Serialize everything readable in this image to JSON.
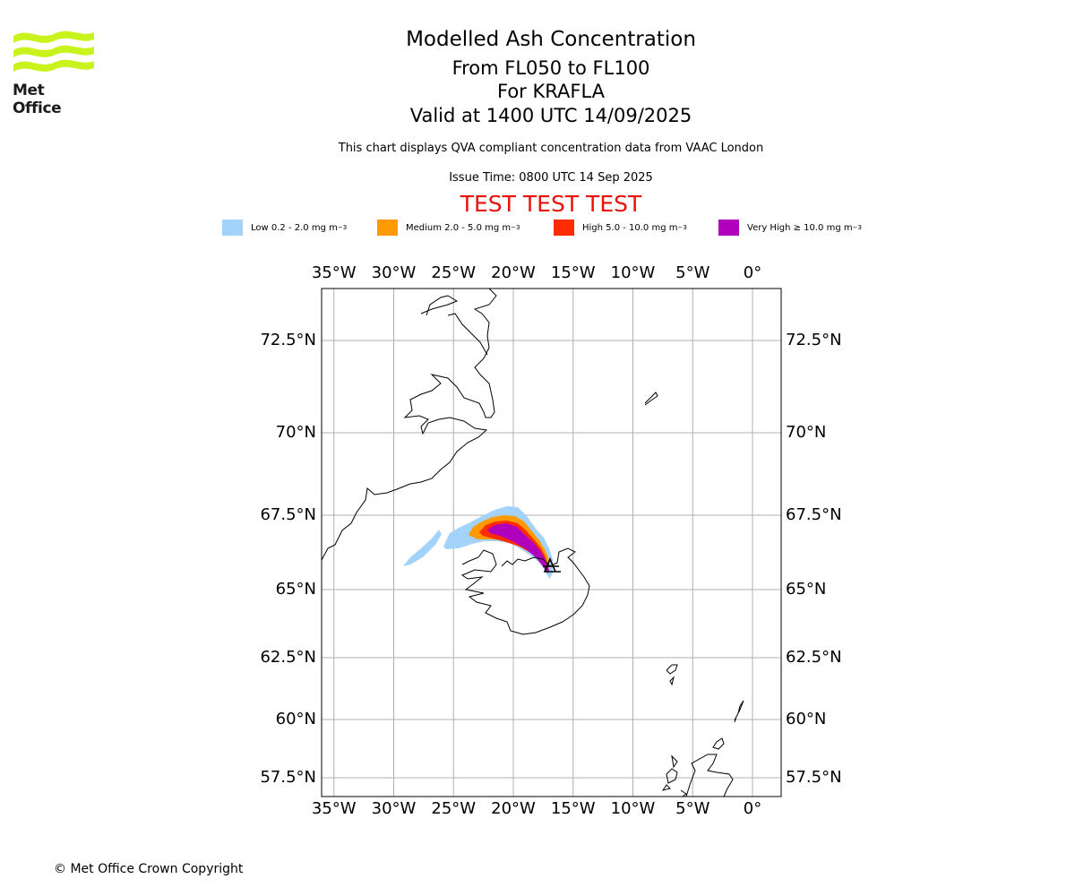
{
  "logo": {
    "text": "Met Office",
    "colors": [
      "#c8f31d",
      "#1b1b1b"
    ]
  },
  "header": {
    "title": "Modelled Ash Concentration",
    "levels": "From FL050 to FL100",
    "volcano": "For KRAFLA",
    "valid": "Valid at 1400 UTC 14/09/2025",
    "compliance": "This chart displays QVA compliant concentration data from VAAC London",
    "issue": "Issue Time: 0800 UTC 14 Sep 2025",
    "test_banner": "TEST TEST TEST"
  },
  "legend": [
    {
      "name": "low",
      "label": "Low 0.2 - 2.0 mg m",
      "exp": "−3",
      "color": "#a3d3fb"
    },
    {
      "name": "medium",
      "label": "Medium 2.0 - 5.0 mg m",
      "exp": "−3",
      "color": "#ff9a00"
    },
    {
      "name": "high",
      "label": "High 5.0 - 10.0 mg m",
      "exp": "−3",
      "color": "#ff2c00"
    },
    {
      "name": "very-high",
      "label": "Very High  ≥  10.0 mg m",
      "exp": "−3",
      "color": "#b100bb"
    }
  ],
  "map": {
    "lon_ticks": [
      {
        "lon": -35,
        "label": "35°W"
      },
      {
        "lon": -30,
        "label": "30°W"
      },
      {
        "lon": -25,
        "label": "25°W"
      },
      {
        "lon": -20,
        "label": "20°W"
      },
      {
        "lon": -15,
        "label": "15°W"
      },
      {
        "lon": -10,
        "label": "10°W"
      },
      {
        "lon": -5,
        "label": "5°W"
      },
      {
        "lon": 0,
        "label": "0°"
      }
    ],
    "lat_ticks": [
      {
        "lat": 72.5,
        "label": "72.5°N"
      },
      {
        "lat": 70,
        "label": "70°N"
      },
      {
        "lat": 67.5,
        "label": "67.5°N"
      },
      {
        "lat": 65,
        "label": "65°N"
      },
      {
        "lat": 62.5,
        "label": "62.5°N"
      },
      {
        "lat": 60,
        "label": "60°N"
      },
      {
        "lat": 57.5,
        "label": "57.5°N"
      }
    ],
    "volcano_marker": "KRAFLA"
  },
  "footer": {
    "copyright": "© Met Office Crown Copyright"
  }
}
